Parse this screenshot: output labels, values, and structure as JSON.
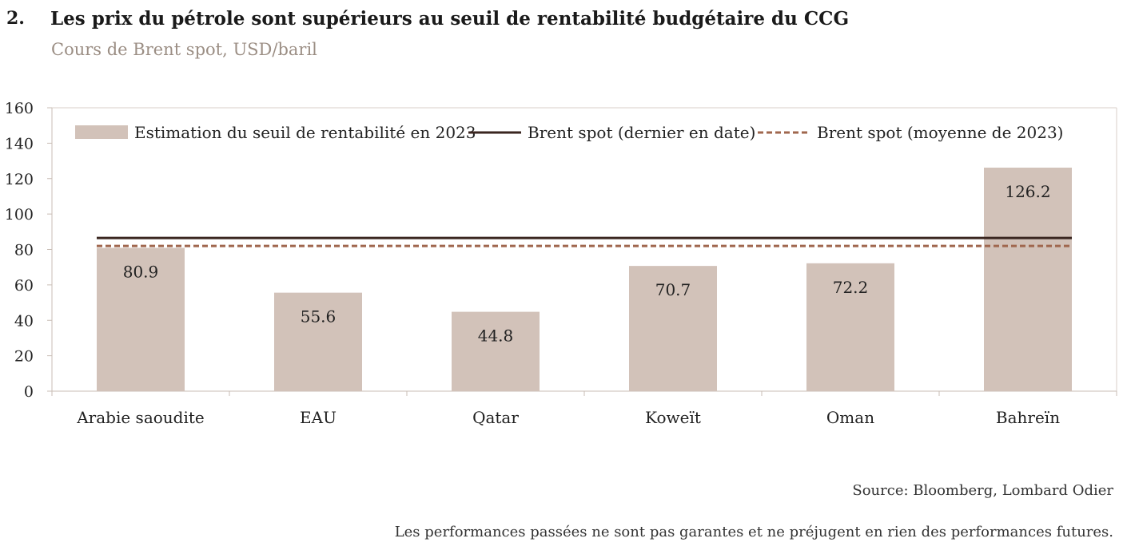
{
  "header": {
    "number": "2.",
    "title": "Les prix du pétrole sont supérieurs au seuil de rentabilité budgétaire du CCG",
    "subtitle": "Cours de Brent spot, USD/baril"
  },
  "chart_data": {
    "type": "bar",
    "categories": [
      "Arabie saoudite",
      "EAU",
      "Qatar",
      "Koweït",
      "Oman",
      "Bahreïn"
    ],
    "series": [
      {
        "name": "Estimation du seuil de rentabilité en 2023",
        "type": "bar",
        "values": [
          80.9,
          55.6,
          44.8,
          70.7,
          72.2,
          126.2
        ],
        "color": "#d2c2b9"
      },
      {
        "name": "Brent spot (dernier en date)",
        "type": "line",
        "value": 86.5,
        "color": "#3a2620",
        "style": "solid"
      },
      {
        "name": "Brent spot (moyenne de 2023)",
        "type": "line",
        "value": 82,
        "color": "#a0674e",
        "style": "dashed"
      }
    ],
    "data_labels": [
      "80.9",
      "55.6",
      "44.8",
      "70.7",
      "72.2",
      "126.2"
    ],
    "ylim": [
      0,
      160
    ],
    "yticks": [
      0,
      20,
      40,
      60,
      80,
      100,
      120,
      140,
      160
    ],
    "grid": false,
    "legend_position": "top"
  },
  "footer": {
    "source": "Source: Bloomberg, Lombard Odier",
    "disclaimer": "Les performances passées ne sont pas garantes et ne préjugent en rien des performances futures."
  }
}
